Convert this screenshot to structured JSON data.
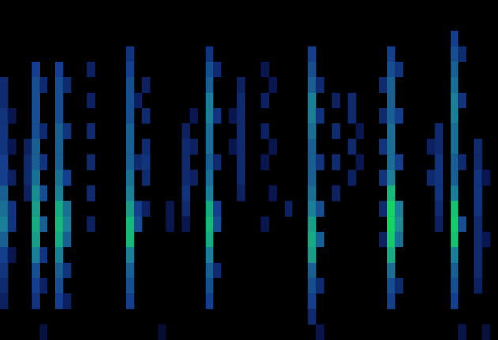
{
  "chart_data": {
    "type": "heatmap",
    "tick_labels": false,
    "columns": 63,
    "rows": 22,
    "value_range": [
      0,
      1
    ],
    "cells": [
      [
        0,
        5,
        0.3
      ],
      [
        0,
        6,
        0.3
      ],
      [
        0,
        7,
        0.35
      ],
      [
        0,
        8,
        0.35
      ],
      [
        0,
        9,
        0.35
      ],
      [
        0,
        10,
        0.4
      ],
      [
        0,
        11,
        0.4
      ],
      [
        0,
        12,
        0.5
      ],
      [
        0,
        13,
        0.55
      ],
      [
        0,
        14,
        0.6
      ],
      [
        0,
        15,
        0.5
      ],
      [
        0,
        16,
        0.4
      ],
      [
        0,
        17,
        0.35
      ],
      [
        0,
        18,
        0.3
      ],
      [
        0,
        19,
        0.25
      ],
      [
        1,
        7,
        0.2
      ],
      [
        1,
        9,
        0.2
      ],
      [
        1,
        11,
        0.25
      ],
      [
        1,
        13,
        0.35
      ],
      [
        1,
        14,
        0.35
      ],
      [
        1,
        16,
        0.2
      ],
      [
        3,
        9,
        0.25
      ],
      [
        3,
        10,
        0.3
      ],
      [
        3,
        11,
        0.3
      ],
      [
        3,
        12,
        0.25
      ],
      [
        4,
        4,
        0.4
      ],
      [
        4,
        5,
        0.45
      ],
      [
        4,
        6,
        0.45
      ],
      [
        4,
        7,
        0.45
      ],
      [
        4,
        8,
        0.45
      ],
      [
        4,
        9,
        0.5
      ],
      [
        4,
        10,
        0.5
      ],
      [
        4,
        11,
        0.55
      ],
      [
        4,
        12,
        0.65
      ],
      [
        4,
        13,
        0.7
      ],
      [
        4,
        14,
        0.75
      ],
      [
        4,
        15,
        0.7
      ],
      [
        4,
        16,
        0.6
      ],
      [
        4,
        17,
        0.45
      ],
      [
        4,
        18,
        0.4
      ],
      [
        4,
        19,
        0.35
      ],
      [
        5,
        5,
        0.3
      ],
      [
        5,
        8,
        0.3
      ],
      [
        5,
        10,
        0.35
      ],
      [
        5,
        12,
        0.45
      ],
      [
        5,
        14,
        0.5
      ],
      [
        5,
        16,
        0.35
      ],
      [
        5,
        18,
        0.25
      ],
      [
        7,
        4,
        0.4
      ],
      [
        7,
        5,
        0.45
      ],
      [
        7,
        6,
        0.45
      ],
      [
        7,
        7,
        0.45
      ],
      [
        7,
        8,
        0.5
      ],
      [
        7,
        9,
        0.5
      ],
      [
        7,
        10,
        0.5
      ],
      [
        7,
        11,
        0.55
      ],
      [
        7,
        12,
        0.6
      ],
      [
        7,
        13,
        0.75
      ],
      [
        7,
        14,
        0.8
      ],
      [
        7,
        15,
        0.75
      ],
      [
        7,
        16,
        0.6
      ],
      [
        7,
        17,
        0.5
      ],
      [
        7,
        18,
        0.45
      ],
      [
        7,
        19,
        0.4
      ],
      [
        8,
        5,
        0.3
      ],
      [
        8,
        8,
        0.35
      ],
      [
        8,
        11,
        0.4
      ],
      [
        8,
        13,
        0.55
      ],
      [
        8,
        14,
        0.6
      ],
      [
        8,
        15,
        0.5
      ],
      [
        8,
        17,
        0.35
      ],
      [
        8,
        19,
        0.25
      ],
      [
        11,
        4,
        0.25
      ],
      [
        11,
        6,
        0.25
      ],
      [
        11,
        8,
        0.3
      ],
      [
        11,
        10,
        0.3
      ],
      [
        11,
        12,
        0.3
      ],
      [
        11,
        14,
        0.25
      ],
      [
        16,
        3,
        0.35
      ],
      [
        16,
        4,
        0.4
      ],
      [
        16,
        5,
        0.45
      ],
      [
        16,
        6,
        0.45
      ],
      [
        16,
        7,
        0.45
      ],
      [
        16,
        8,
        0.5
      ],
      [
        16,
        9,
        0.5
      ],
      [
        16,
        10,
        0.5
      ],
      [
        16,
        11,
        0.55
      ],
      [
        16,
        12,
        0.6
      ],
      [
        16,
        13,
        0.7
      ],
      [
        16,
        14,
        0.8
      ],
      [
        16,
        15,
        0.8
      ],
      [
        16,
        16,
        0.6
      ],
      [
        16,
        17,
        0.5
      ],
      [
        16,
        18,
        0.45
      ],
      [
        16,
        19,
        0.4
      ],
      [
        17,
        6,
        0.25
      ],
      [
        17,
        10,
        0.3
      ],
      [
        17,
        13,
        0.4
      ],
      [
        17,
        14,
        0.45
      ],
      [
        18,
        5,
        0.25
      ],
      [
        18,
        7,
        0.3
      ],
      [
        18,
        9,
        0.3
      ],
      [
        18,
        10,
        0.35
      ],
      [
        18,
        11,
        0.3
      ],
      [
        18,
        13,
        0.25
      ],
      [
        21,
        13,
        0.2
      ],
      [
        21,
        14,
        0.2
      ],
      [
        23,
        8,
        0.25
      ],
      [
        23,
        9,
        0.3
      ],
      [
        23,
        10,
        0.3
      ],
      [
        23,
        11,
        0.3
      ],
      [
        23,
        12,
        0.35
      ],
      [
        23,
        13,
        0.3
      ],
      [
        23,
        14,
        0.2
      ],
      [
        24,
        7,
        0.2
      ],
      [
        24,
        9,
        0.25
      ],
      [
        24,
        11,
        0.25
      ],
      [
        26,
        3,
        0.35
      ],
      [
        26,
        4,
        0.45
      ],
      [
        26,
        5,
        0.5
      ],
      [
        26,
        6,
        0.6
      ],
      [
        26,
        7,
        0.6
      ],
      [
        26,
        8,
        0.55
      ],
      [
        26,
        9,
        0.55
      ],
      [
        26,
        10,
        0.5
      ],
      [
        26,
        11,
        0.55
      ],
      [
        26,
        12,
        0.6
      ],
      [
        26,
        13,
        0.75
      ],
      [
        26,
        14,
        0.8
      ],
      [
        26,
        15,
        0.75
      ],
      [
        26,
        16,
        0.6
      ],
      [
        26,
        17,
        0.5
      ],
      [
        26,
        18,
        0.45
      ],
      [
        26,
        19,
        0.4
      ],
      [
        27,
        4,
        0.3
      ],
      [
        27,
        7,
        0.35
      ],
      [
        27,
        10,
        0.3
      ],
      [
        27,
        13,
        0.4
      ],
      [
        27,
        14,
        0.45
      ],
      [
        27,
        17,
        0.3
      ],
      [
        29,
        7,
        0.2
      ],
      [
        29,
        9,
        0.2
      ],
      [
        30,
        5,
        0.25
      ],
      [
        30,
        6,
        0.3
      ],
      [
        30,
        7,
        0.3
      ],
      [
        30,
        8,
        0.3
      ],
      [
        30,
        9,
        0.3
      ],
      [
        30,
        10,
        0.3
      ],
      [
        30,
        11,
        0.3
      ],
      [
        30,
        12,
        0.25
      ],
      [
        33,
        4,
        0.2
      ],
      [
        33,
        6,
        0.25
      ],
      [
        33,
        8,
        0.25
      ],
      [
        33,
        10,
        0.2
      ],
      [
        33,
        14,
        0.2
      ],
      [
        34,
        5,
        0.2
      ],
      [
        34,
        9,
        0.2
      ],
      [
        34,
        12,
        0.2
      ],
      [
        36,
        13,
        0.25
      ],
      [
        39,
        3,
        0.4
      ],
      [
        39,
        4,
        0.45
      ],
      [
        39,
        5,
        0.5
      ],
      [
        39,
        6,
        0.6
      ],
      [
        39,
        7,
        0.6
      ],
      [
        39,
        8,
        0.55
      ],
      [
        39,
        9,
        0.5
      ],
      [
        39,
        10,
        0.5
      ],
      [
        39,
        11,
        0.5
      ],
      [
        39,
        12,
        0.55
      ],
      [
        39,
        13,
        0.6
      ],
      [
        39,
        14,
        0.7
      ],
      [
        39,
        15,
        0.75
      ],
      [
        39,
        16,
        0.7
      ],
      [
        39,
        17,
        0.5
      ],
      [
        39,
        18,
        0.45
      ],
      [
        39,
        19,
        0.4
      ],
      [
        39,
        20,
        0.3
      ],
      [
        40,
        5,
        0.3
      ],
      [
        40,
        7,
        0.35
      ],
      [
        40,
        10,
        0.35
      ],
      [
        40,
        13,
        0.45
      ],
      [
        40,
        15,
        0.5
      ],
      [
        40,
        18,
        0.3
      ],
      [
        42,
        6,
        0.25
      ],
      [
        42,
        8,
        0.3
      ],
      [
        42,
        10,
        0.3
      ],
      [
        42,
        12,
        0.25
      ],
      [
        44,
        6,
        0.3
      ],
      [
        44,
        7,
        0.3
      ],
      [
        44,
        9,
        0.3
      ],
      [
        44,
        11,
        0.25
      ],
      [
        45,
        8,
        0.2
      ],
      [
        45,
        10,
        0.2
      ],
      [
        48,
        5,
        0.3
      ],
      [
        48,
        7,
        0.3
      ],
      [
        48,
        9,
        0.35
      ],
      [
        48,
        11,
        0.35
      ],
      [
        48,
        13,
        0.3
      ],
      [
        48,
        15,
        0.25
      ],
      [
        49,
        3,
        0.4
      ],
      [
        49,
        4,
        0.45
      ],
      [
        49,
        5,
        0.5
      ],
      [
        49,
        6,
        0.5
      ],
      [
        49,
        7,
        0.5
      ],
      [
        49,
        8,
        0.55
      ],
      [
        49,
        9,
        0.55
      ],
      [
        49,
        10,
        0.55
      ],
      [
        49,
        11,
        0.6
      ],
      [
        49,
        12,
        0.8
      ],
      [
        49,
        13,
        0.95
      ],
      [
        49,
        14,
        0.95
      ],
      [
        49,
        15,
        0.9
      ],
      [
        49,
        16,
        0.75
      ],
      [
        49,
        17,
        0.55
      ],
      [
        49,
        18,
        0.45
      ],
      [
        49,
        19,
        0.4
      ],
      [
        50,
        4,
        0.35
      ],
      [
        50,
        7,
        0.4
      ],
      [
        50,
        10,
        0.4
      ],
      [
        50,
        13,
        0.6
      ],
      [
        50,
        14,
        0.65
      ],
      [
        50,
        15,
        0.55
      ],
      [
        50,
        18,
        0.3
      ],
      [
        54,
        9,
        0.25
      ],
      [
        54,
        11,
        0.3
      ],
      [
        55,
        8,
        0.3
      ],
      [
        55,
        9,
        0.3
      ],
      [
        55,
        10,
        0.35
      ],
      [
        55,
        11,
        0.35
      ],
      [
        55,
        12,
        0.35
      ],
      [
        55,
        13,
        0.3
      ],
      [
        55,
        14,
        0.25
      ],
      [
        57,
        2,
        0.4
      ],
      [
        57,
        3,
        0.45
      ],
      [
        57,
        4,
        0.5
      ],
      [
        57,
        5,
        0.55
      ],
      [
        57,
        6,
        0.6
      ],
      [
        57,
        7,
        0.6
      ],
      [
        57,
        8,
        0.55
      ],
      [
        57,
        9,
        0.55
      ],
      [
        57,
        10,
        0.5
      ],
      [
        57,
        11,
        0.5
      ],
      [
        57,
        12,
        0.6
      ],
      [
        57,
        13,
        0.85
      ],
      [
        57,
        14,
        0.9
      ],
      [
        57,
        15,
        0.85
      ],
      [
        57,
        16,
        0.6
      ],
      [
        57,
        17,
        0.5
      ],
      [
        57,
        18,
        0.45
      ],
      [
        57,
        19,
        0.4
      ],
      [
        58,
        3,
        0.3
      ],
      [
        58,
        6,
        0.35
      ],
      [
        58,
        10,
        0.3
      ],
      [
        58,
        14,
        0.45
      ],
      [
        60,
        9,
        0.3
      ],
      [
        60,
        10,
        0.3
      ],
      [
        60,
        11,
        0.35
      ],
      [
        60,
        12,
        0.35
      ],
      [
        60,
        13,
        0.35
      ],
      [
        60,
        14,
        0.3
      ],
      [
        60,
        15,
        0.3
      ],
      [
        60,
        16,
        0.3
      ],
      [
        60,
        17,
        0.3
      ],
      [
        60,
        18,
        0.25
      ],
      [
        61,
        11,
        0.2
      ],
      [
        61,
        15,
        0.2
      ],
      [
        5,
        21,
        0.15
      ],
      [
        20,
        21,
        0.12
      ],
      [
        40,
        21,
        0.18
      ],
      [
        58,
        21,
        0.18
      ],
      [
        61,
        21,
        0.15
      ]
    ]
  }
}
